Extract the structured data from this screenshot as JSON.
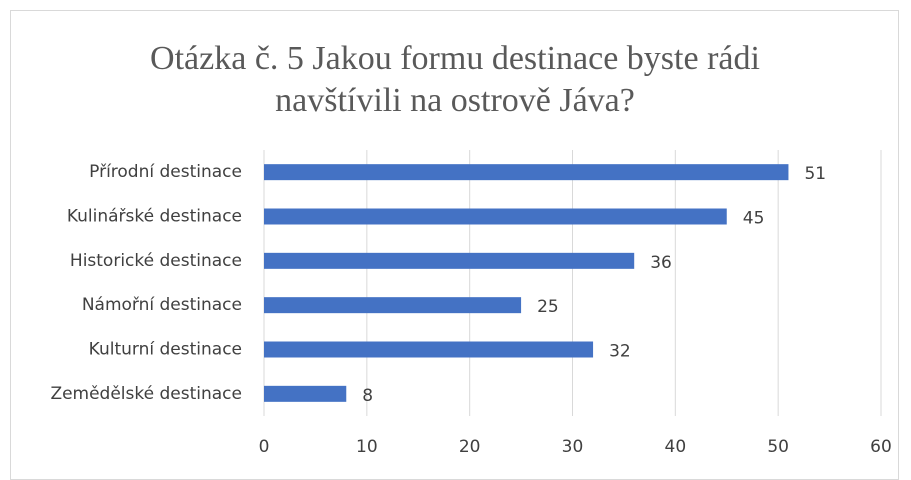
{
  "chart_data": {
    "type": "bar",
    "orientation": "horizontal",
    "title": "Otázka č. 5 Jakou formu destinace byste rádi navštívili na ostrově Jáva?",
    "categories": [
      "Přírodní destinace",
      "Kulinářské destinace",
      "Historické destinace",
      "Námořní destinace",
      "Kulturní destinace",
      "Zemědělské destinace"
    ],
    "values": [
      51,
      45,
      36,
      25,
      32,
      8
    ],
    "color": "#4472c4",
    "xlim": [
      0,
      60
    ],
    "xticks": [
      0,
      10,
      20,
      30,
      40,
      50,
      60
    ],
    "grid": true
  }
}
